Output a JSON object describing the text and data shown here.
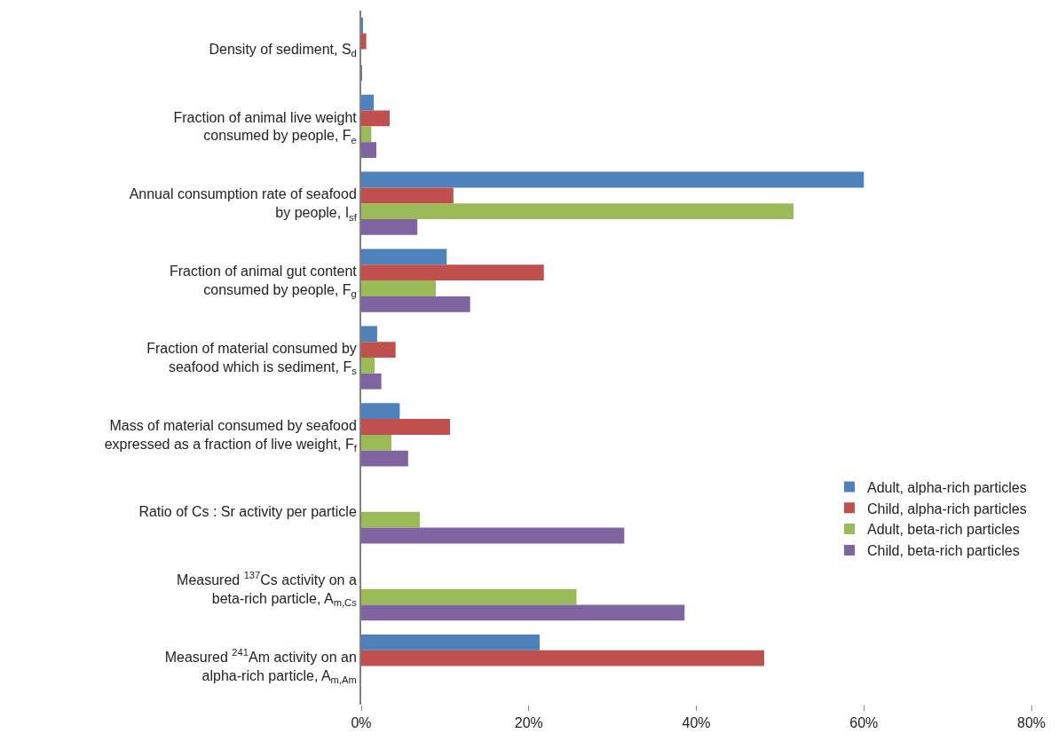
{
  "chart_data": {
    "type": "bar",
    "orientation": "horizontal",
    "categories": [
      "Density of sediment, S$_{d}$",
      "Fraction of animal live weight\nconsumed by people, F$_{e}$",
      "Annual consumption rate of seafood\nby people, I$_{sf}$",
      "Fraction of animal gut content\nconsumed by people, F$_{g}$",
      "Fraction of material consumed by\nseafood which is sediment, F$_{s}$",
      "Mass of material consumed by seafood\nexpressed as a fraction of live weight, F$_{f}$",
      "Ratio of Cs : Sr activity per particle",
      "Measured $^{137}$Cs activity on a\nbeta-rich particle, A$_{m,Cs}$",
      "Measured $^{241}$Am activity on an\nalpha-rich particle, A$_{m,Am}$"
    ],
    "series": [
      {
        "name": "Adult, alpha-rich particles",
        "color": "#4f81bd",
        "values": [
          0.2,
          1.5,
          60,
          10.2,
          1.9,
          4.6,
          null,
          null,
          21.3
        ]
      },
      {
        "name": "Child, alpha-rich particles",
        "color": "#c0504d",
        "values": [
          0.6,
          3.4,
          11.0,
          21.8,
          4.1,
          10.6,
          null,
          null,
          48.1
        ]
      },
      {
        "name": "Adult, beta-rich particles",
        "color": "#9bbb59",
        "values": [
          0,
          1.2,
          51.6,
          8.9,
          1.6,
          3.6,
          7.0,
          25.7,
          null
        ]
      },
      {
        "name": "Child, beta-rich particles",
        "color": "#8064a2",
        "values": [
          0.1,
          1.8,
          6.7,
          13.0,
          2.4,
          5.6,
          31.4,
          38.6,
          null
        ]
      }
    ],
    "xlim": [
      0,
      80
    ],
    "xticks": [
      {
        "value": 0,
        "label": "0%"
      },
      {
        "value": 20,
        "label": "20%"
      },
      {
        "value": 40,
        "label": "40%"
      },
      {
        "value": 60,
        "label": "60%"
      },
      {
        "value": 80,
        "label": "80%"
      }
    ],
    "legend": "right"
  }
}
